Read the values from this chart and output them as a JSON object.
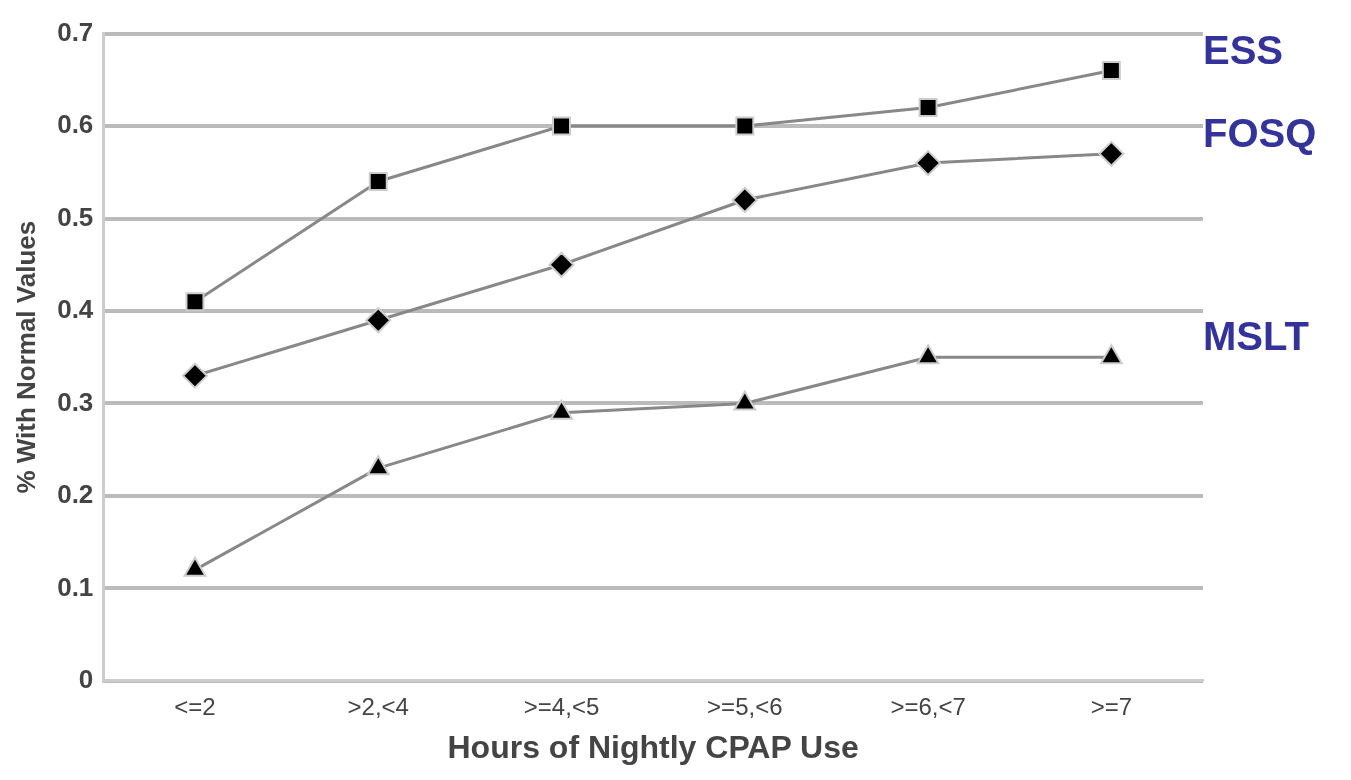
{
  "chart_data": {
    "type": "line",
    "xlabel": "Hours of Nightly CPAP Use",
    "ylabel": "% With Normal Values",
    "categories": [
      "<=2",
      ">2,<4",
      ">=4,<5",
      ">=5,<6",
      ">=6,<7",
      ">=7"
    ],
    "series": [
      {
        "name": "ESS",
        "color": "#000000",
        "marker": "square",
        "values": [
          0.41,
          0.54,
          0.6,
          0.6,
          0.62,
          0.66
        ]
      },
      {
        "name": "FOSQ",
        "color": "#000000",
        "marker": "diamond",
        "values": [
          0.33,
          0.39,
          0.45,
          0.52,
          0.56,
          0.57
        ]
      },
      {
        "name": "MSLT",
        "color": "#000000",
        "marker": "triangle",
        "values": [
          0.12,
          0.23,
          0.29,
          0.3,
          0.35,
          0.35
        ]
      }
    ],
    "ylim": [
      0,
      0.7
    ],
    "yticks": [
      0,
      0.1,
      0.2,
      0.3,
      0.4,
      0.5,
      0.6,
      0.7
    ],
    "grid": "y",
    "legend": false,
    "line_style": "solid"
  }
}
